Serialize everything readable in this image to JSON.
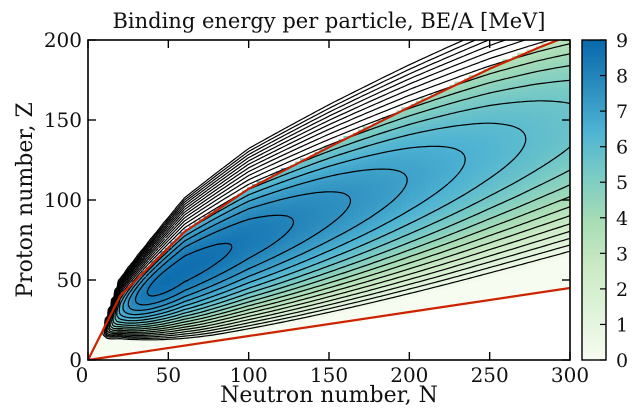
{
  "chart_data": {
    "type": "heatmap",
    "title": "Binding energy per particle, BE/A [MeV]",
    "xlabel": "Neutron number, N",
    "ylabel": "Proton number, Z",
    "xlim": [
      0,
      300
    ],
    "ylim": [
      0,
      200
    ],
    "x_ticks": [
      "0",
      "50",
      "100",
      "150",
      "200",
      "250",
      "300"
    ],
    "y_ticks": [
      "0",
      "50",
      "100",
      "150",
      "200"
    ],
    "colorbar": {
      "range": [
        0,
        9
      ],
      "ticks": [
        "0",
        "1",
        "2",
        "3",
        "4",
        "5",
        "6",
        "7",
        "8",
        "9"
      ],
      "colors": [
        "#f7fcf0",
        "#e0f3db",
        "#ccebc5",
        "#a8ddb5",
        "#7bccc4",
        "#4eb3d3",
        "#2b8cbe",
        "#0868ac"
      ]
    },
    "peak": {
      "value": 8.8,
      "N": 60,
      "Z": 42
    },
    "contours": {
      "style": "dashed",
      "color": "#000000",
      "levels": [
        0.5,
        1,
        1.5,
        2,
        2.5,
        3,
        3.5,
        4,
        4.5,
        5,
        5.5,
        6,
        6.5,
        7,
        7.5,
        8,
        8.5
      ]
    },
    "boundary_lines": {
      "color": "#cc2200",
      "upper": [
        [
          0,
          0
        ],
        [
          20,
          40
        ],
        [
          60,
          80
        ],
        [
          100,
          107
        ],
        [
          150,
          133
        ],
        [
          180,
          148
        ],
        [
          200,
          158
        ],
        [
          250,
          182
        ],
        [
          280,
          195
        ],
        [
          300,
          203
        ]
      ],
      "lower": [
        [
          0,
          0
        ],
        [
          100,
          15
        ],
        [
          200,
          30
        ],
        [
          300,
          45
        ]
      ]
    },
    "grid": false
  }
}
